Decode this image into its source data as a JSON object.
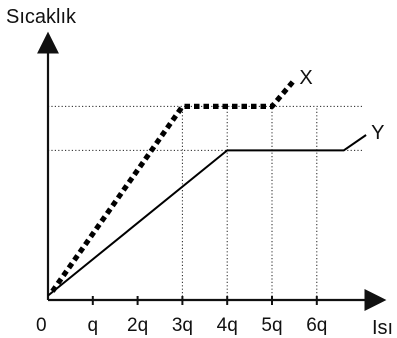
{
  "chart_data": {
    "type": "line",
    "ylabel": "Sıcaklık",
    "xlabel": "Isı",
    "x_ticks": [
      {
        "value": 0,
        "label": "0"
      },
      {
        "value": 1,
        "label": "q"
      },
      {
        "value": 2,
        "label": "2q"
      },
      {
        "value": 3,
        "label": "3q"
      },
      {
        "value": 4,
        "label": "4q"
      },
      {
        "value": 5,
        "label": "5q"
      },
      {
        "value": 6,
        "label": "6q"
      }
    ],
    "xlim": [
      0,
      7.5
    ],
    "ylim": [
      0,
      5
    ],
    "grid": false,
    "reference_lines": [
      {
        "type": "horizontal",
        "y": 4.4
      },
      {
        "type": "horizontal",
        "y": 3.4
      },
      {
        "type": "vertical",
        "x": 3
      },
      {
        "type": "vertical",
        "x": 4
      },
      {
        "type": "vertical",
        "x": 5
      },
      {
        "type": "vertical",
        "x": 6
      }
    ],
    "series": [
      {
        "name": "X",
        "style": "dotted",
        "color": "#000000",
        "points": [
          {
            "x": 0.1,
            "y": 0.2
          },
          {
            "x": 3,
            "y": 4.4
          },
          {
            "x": 5,
            "y": 4.4
          },
          {
            "x": 5.5,
            "y": 5.0
          }
        ]
      },
      {
        "name": "Y",
        "style": "solid",
        "color": "#000000",
        "points": [
          {
            "x": 0,
            "y": 0.1
          },
          {
            "x": 4,
            "y": 3.4
          },
          {
            "x": 6.6,
            "y": 3.4
          },
          {
            "x": 7.1,
            "y": 3.75
          }
        ]
      }
    ]
  }
}
